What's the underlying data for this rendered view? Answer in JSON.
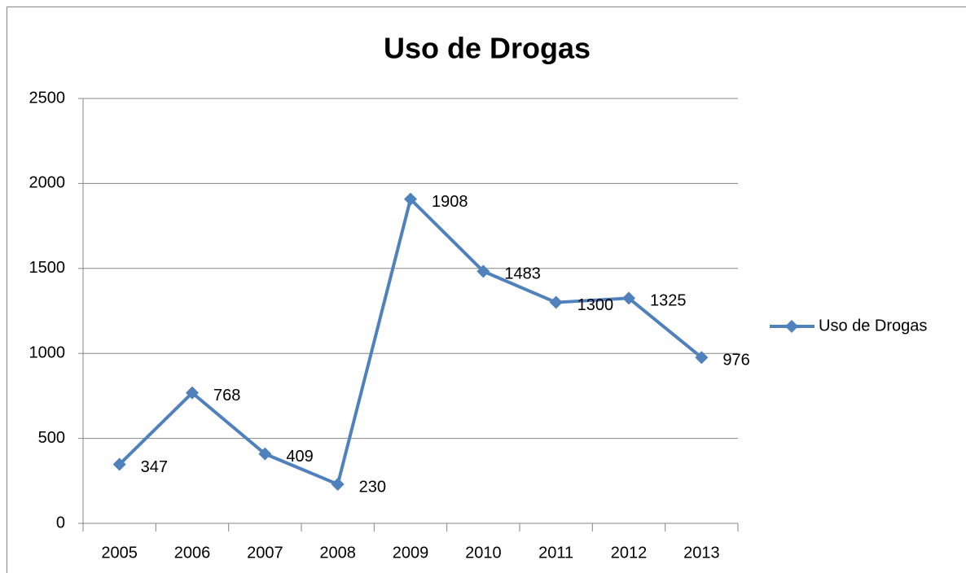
{
  "chart_data": {
    "type": "line",
    "title": "Uso de Drogas",
    "categories": [
      "2005",
      "2006",
      "2007",
      "2008",
      "2009",
      "2010",
      "2011",
      "2012",
      "2013"
    ],
    "series": [
      {
        "name": "Uso de Drogas",
        "color": "#4f81bd",
        "values": [
          347,
          768,
          409,
          230,
          1908,
          1483,
          1300,
          1325,
          976
        ]
      }
    ],
    "ylim": [
      0,
      2500
    ],
    "yticks": [
      0,
      500,
      1000,
      1500,
      2000,
      2500
    ],
    "grid": true,
    "legend": "right",
    "data_labels": true
  }
}
